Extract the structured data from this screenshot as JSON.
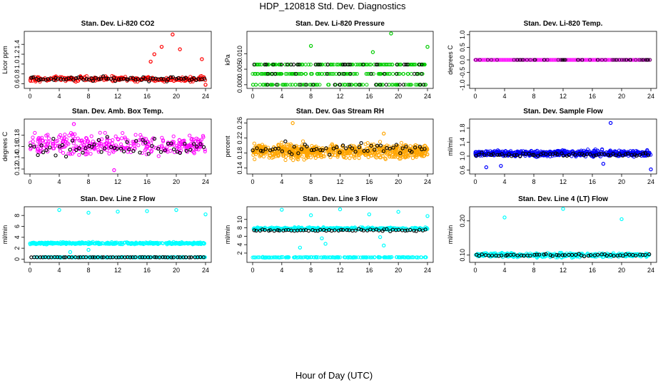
{
  "title": "HDP_120818  Std. Dev. Diagnostics",
  "xlabel": "Hour of Day (UTC)",
  "chart_data": [
    {
      "type": "scatter",
      "title": "Stan. Dev. Li-820 CO2",
      "ylabel": "Licor ppm",
      "xlim": [
        0,
        24
      ],
      "ylim": [
        0.55,
        1.62
      ],
      "xticks": [
        "0",
        "4",
        "8",
        "12",
        "16",
        "20",
        "24"
      ],
      "yticks": [
        "0.6",
        "0.8",
        "1.0",
        "1.2",
        "1.4"
      ],
      "ytick_values": [
        0.6,
        0.8,
        1.0,
        1.2,
        1.4
      ],
      "colors": [
        "#ff0000"
      ],
      "cloud": {
        "center": 0.7,
        "spread": 0.05,
        "count": 260
      },
      "black": {
        "center": 0.7,
        "spread": 0.04,
        "count": 70
      },
      "outliers": [
        [
          19.5,
          1.6
        ],
        [
          17,
          1.2
        ],
        [
          18,
          1.35
        ],
        [
          20.5,
          1.3
        ],
        [
          16.5,
          1.05
        ],
        [
          24,
          0.58
        ],
        [
          23.5,
          1.1
        ]
      ]
    },
    {
      "type": "scatter",
      "title": "Stan. Dev. Li-820 Pressure",
      "ylabel": "kPa",
      "xlim": [
        0,
        24
      ],
      "ylim": [
        -0.0005,
        0.0165
      ],
      "xticks": [
        "0",
        "4",
        "8",
        "12",
        "16",
        "20",
        "24"
      ],
      "yticks": [
        "0.000",
        "0.005",
        "0.010"
      ],
      "ytick_values": [
        0,
        0.005,
        0.01
      ],
      "colors": [
        "#00cc00"
      ],
      "discrete_levels": [
        0,
        0.0035,
        0.0065
      ],
      "cloud": {
        "count": 320
      },
      "black": {
        "count": 60
      },
      "outliers": [
        [
          8,
          0.0125
        ],
        [
          16.5,
          0.0105
        ],
        [
          19,
          0.0165
        ],
        [
          24,
          0.0122
        ]
      ]
    },
    {
      "type": "scatter",
      "title": "Stan. Dev. Li-820 Temp.",
      "ylabel": "degrees C",
      "xlim": [
        0,
        24
      ],
      "ylim": [
        -1.05,
        1.05
      ],
      "xticks": [
        "0",
        "4",
        "8",
        "12",
        "16",
        "20",
        "24"
      ],
      "yticks": [
        "-1.0",
        "-0.5",
        "0.0",
        "0.5",
        "1.0"
      ],
      "ytick_values": [
        -1,
        -0.5,
        0,
        0.5,
        1
      ],
      "colors": [
        "#ff00ff"
      ],
      "constant": 0,
      "cloud": {
        "count": 140
      },
      "black": {
        "count": 60
      },
      "outliers": []
    },
    {
      "type": "scatter",
      "title": "Stan. Dev. Amb. Box Temp.",
      "ylabel": "degrees C",
      "xlim": [
        0,
        24
      ],
      "ylim": [
        0.115,
        0.205
      ],
      "xticks": [
        "0",
        "4",
        "8",
        "12",
        "16",
        "20",
        "24"
      ],
      "yticks": [
        "0.12",
        "0.14",
        "0.16",
        "0.18"
      ],
      "ytick_values": [
        0.12,
        0.14,
        0.16,
        0.18
      ],
      "colors": [
        "#ff00ff"
      ],
      "cloud": {
        "center": 0.163,
        "spread": 0.017,
        "count": 320
      },
      "black": {
        "center": 0.16,
        "spread": 0.015,
        "count": 55
      },
      "outliers": [
        [
          11.5,
          0.118
        ],
        [
          6,
          0.2
        ]
      ]
    },
    {
      "type": "scatter",
      "title": "Stan. Dev. Gas Stream RH",
      "ylabel": "percent",
      "xlim": [
        0,
        24
      ],
      "ylim": [
        0.13,
        0.265
      ],
      "xticks": [
        "0",
        "4",
        "8",
        "12",
        "16",
        "20",
        "24"
      ],
      "yticks": [
        "0.14",
        "0.18",
        "0.22",
        "0.26"
      ],
      "ytick_values": [
        0.14,
        0.18,
        0.22,
        0.26
      ],
      "colors": [
        "#ffa500"
      ],
      "cloud": {
        "center": 0.185,
        "spread": 0.018,
        "count": 700
      },
      "black": {
        "center": 0.19,
        "spread": 0.015,
        "count": 55
      },
      "outliers": [
        [
          5.5,
          0.26
        ],
        [
          18,
          0.232
        ]
      ]
    },
    {
      "type": "scatter",
      "title": "Stan. Dev. Sample Flow",
      "ylabel": "ml/min",
      "xlim": [
        0,
        24
      ],
      "ylim": [
        0.55,
        2.0
      ],
      "xticks": [
        "0",
        "4",
        "8",
        "12",
        "16",
        "20",
        "24"
      ],
      "yticks": [
        "0.6",
        "1.0",
        "1.4",
        "1.8"
      ],
      "ytick_values": [
        0.6,
        1.0,
        1.4,
        1.8
      ],
      "colors": [
        "#0000ff"
      ],
      "cloud": {
        "center": 1.08,
        "spread": 0.08,
        "count": 600
      },
      "black": {
        "center": 1.05,
        "spread": 0.05,
        "count": 60
      },
      "outliers": [
        [
          18.5,
          1.95
        ],
        [
          24,
          0.62
        ],
        [
          1.5,
          0.68
        ],
        [
          3.5,
          0.72
        ],
        [
          17.5,
          0.78
        ]
      ]
    },
    {
      "type": "scatter",
      "title": "Stan. Dev. Line 2 Flow",
      "ylabel": "ml/min",
      "xlim": [
        0,
        24
      ],
      "ylim": [
        -0.2,
        9.2
      ],
      "xticks": [
        "0",
        "4",
        "8",
        "12",
        "16",
        "20",
        "24"
      ],
      "yticks": [
        "0",
        "2",
        "4",
        "6",
        "8"
      ],
      "ytick_values": [
        0,
        2,
        4,
        6,
        8
      ],
      "colors": [
        "#00ffff"
      ],
      "band": {
        "center": 2.9,
        "spread": 0.18,
        "count": 400
      },
      "low_band": {
        "center": 0.35,
        "spread": 0.05,
        "count": 200
      },
      "black": {
        "center": 0.35,
        "spread": 0.03,
        "count": 60
      },
      "outliers": [
        [
          4,
          9.0
        ],
        [
          8,
          8.5
        ],
        [
          12,
          8.7
        ],
        [
          16,
          8.8
        ],
        [
          20,
          9.0
        ],
        [
          24,
          8.2
        ],
        [
          5.5,
          1.3
        ],
        [
          8,
          1.7
        ]
      ]
    },
    {
      "type": "scatter",
      "title": "Stan. Dev. Line 3 Flow",
      "ylabel": "ml/min",
      "xlim": [
        0,
        24
      ],
      "ylim": [
        0.3,
        12.5
      ],
      "xticks": [
        "0",
        "4",
        "8",
        "12",
        "16",
        "20",
        "24"
      ],
      "yticks": [
        "2",
        "4",
        "6",
        "8",
        "10"
      ],
      "ytick_values": [
        2,
        4,
        6,
        8,
        10
      ],
      "colors": [
        "#00ffff"
      ],
      "band": {
        "center": 7.8,
        "spread": 0.3,
        "count": 400
      },
      "low_band": {
        "center": 1.0,
        "spread": 0.07,
        "count": 200
      },
      "black": {
        "center": 7.4,
        "spread": 0.25,
        "count": 60
      },
      "outliers": [
        [
          4,
          12.3
        ],
        [
          8,
          11.0
        ],
        [
          12,
          12.4
        ],
        [
          16,
          11.2
        ],
        [
          20,
          11.8
        ],
        [
          24,
          10.8
        ],
        [
          10,
          4.2
        ],
        [
          9.5,
          5.5
        ],
        [
          17.5,
          5.8
        ],
        [
          18,
          3.8
        ],
        [
          6.5,
          3.3
        ]
      ]
    },
    {
      "type": "scatter",
      "title": "Stan. Dev. Line 4 (LT) Flow",
      "ylabel": "ml/min",
      "xlim": [
        0,
        24
      ],
      "ylim": [
        0.085,
        0.235
      ],
      "xticks": [
        "0",
        "4",
        "8",
        "12",
        "16",
        "20",
        "24"
      ],
      "yticks": [
        "0.10",
        "0.20"
      ],
      "ytick_values": [
        0.1,
        0.2
      ],
      "colors": [
        "#00ffff"
      ],
      "band": {
        "center": 0.1,
        "spread": 0.006,
        "count": 400
      },
      "black": {
        "center": 0.1,
        "spread": 0.004,
        "count": 55
      },
      "outliers": [
        [
          4,
          0.21
        ],
        [
          12,
          0.235
        ],
        [
          20,
          0.205
        ]
      ]
    }
  ]
}
